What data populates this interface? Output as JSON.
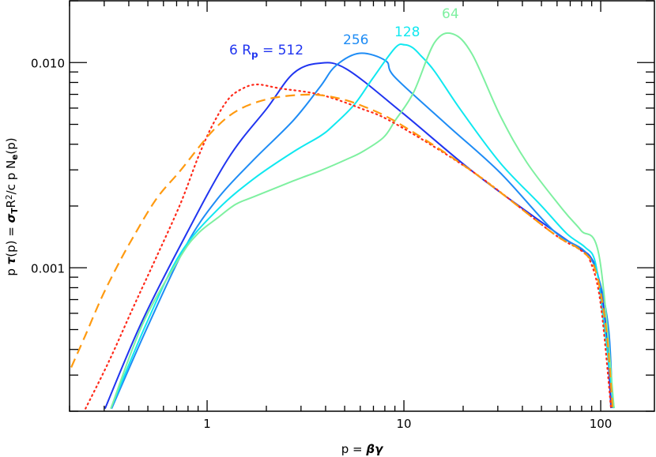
{
  "chart_data": {
    "type": "line",
    "xscale": "log",
    "yscale": "log",
    "xlim": [
      0.2,
      200
    ],
    "ylim": [
      0.0002,
      0.02
    ],
    "grid": false,
    "xlabel": [
      {
        "text": "p = "
      },
      {
        "text": "βγ",
        "bold": true,
        "italic": true
      }
    ],
    "ylabel": [
      {
        "text": "p "
      },
      {
        "text": "τ",
        "bold": true,
        "italic": true
      },
      {
        "text": "(p) = "
      },
      {
        "text": "σ",
        "bold": true,
        "italic": true
      },
      {
        "text": "T",
        "sub": true
      },
      {
        "text": "R"
      },
      {
        "text": "2",
        "sup": true
      },
      {
        "text": "/c p N"
      },
      {
        "text": "e",
        "sub": true
      },
      {
        "text": "(p)"
      }
    ],
    "xticks": [
      {
        "value": 1,
        "label": "1"
      },
      {
        "value": 10,
        "label": "10"
      },
      {
        "value": 100,
        "label": "100"
      }
    ],
    "yticks": [
      {
        "value": 0.001,
        "label": "0.001"
      },
      {
        "value": 0.01,
        "label": "0.010"
      }
    ],
    "series": [
      {
        "name": "512",
        "color": "#2035f0",
        "style": "solid",
        "x": [
          0.303,
          0.46,
          0.73,
          1.27,
          2.02,
          2.74,
          3.68,
          5.09,
          9.7,
          22.8,
          57.4,
          78,
          88.7,
          97.3,
          106.7,
          112.8
        ],
        "y": [
          0.000206,
          0.000531,
          0.00128,
          0.00337,
          0.00601,
          0.00885,
          0.00991,
          0.00932,
          0.00575,
          0.0029,
          0.00152,
          0.00124,
          0.00113,
          0.0009,
          0.000499,
          0.000207
        ]
      },
      {
        "name": "256",
        "color": "#1e8cf5",
        "style": "solid",
        "x": [
          0.327,
          0.505,
          0.78,
          1.13,
          1.73,
          2.74,
          3.75,
          4.51,
          5.96,
          8.08,
          9.03,
          16.8,
          30.9,
          57.4,
          83.2,
          97.3,
          109.7,
          114.9
        ],
        "y": [
          0.000206,
          0.000531,
          0.00128,
          0.00217,
          0.00337,
          0.00522,
          0.00762,
          0.00966,
          0.0111,
          0.0102,
          0.00846,
          0.00491,
          0.0029,
          0.00152,
          0.0012,
          0.0009,
          0.000499,
          0.000207
        ]
      },
      {
        "name": "128",
        "color": "#10e8f0",
        "style": "solid",
        "x": [
          0.324,
          0.49,
          0.73,
          1.13,
          1.73,
          2.74,
          3.75,
          4.35,
          5.58,
          6.91,
          9.03,
          10.1,
          11.1,
          12.2,
          14.3,
          19.5,
          30.9,
          49.1,
          67.1,
          83.2,
          93.7,
          102.8,
          116.9
        ],
        "y": [
          0.000206,
          0.000531,
          0.00117,
          0.00192,
          0.00272,
          0.00367,
          0.00438,
          0.00491,
          0.00622,
          0.00832,
          0.0118,
          0.0122,
          0.0118,
          0.0108,
          0.00908,
          0.00585,
          0.00324,
          0.00204,
          0.00147,
          0.00126,
          0.00107,
          0.00058,
          0.000207
        ]
      },
      {
        "name": "64",
        "color": "#7ef0a0",
        "style": "solid",
        "x": [
          0.324,
          0.47,
          0.73,
          0.9,
          1.13,
          1.4,
          1.73,
          2.74,
          3.75,
          5.09,
          6.13,
          7.86,
          9.03,
          11.2,
          14.3,
          17.7,
          22.2,
          30.9,
          42.3,
          64.8,
          79.4,
          98.2,
          116.9
        ],
        "y": [
          0.000206,
          0.000531,
          0.00113,
          0.00147,
          0.00175,
          0.00204,
          0.00222,
          0.00265,
          0.00297,
          0.00337,
          0.00367,
          0.00431,
          0.00522,
          0.00716,
          0.0125,
          0.0138,
          0.011,
          0.0055,
          0.00324,
          0.0019,
          0.00152,
          0.00114,
          0.000207
        ]
      },
      {
        "color": "#ff2a1a",
        "style": "dotted",
        "x": [
          0.241,
          0.318,
          0.419,
          0.553,
          0.73,
          0.9,
          1.06,
          1.27,
          1.49,
          1.79,
          2.36,
          3.75,
          5.96,
          9.03,
          22.8,
          57.4,
          78,
          88.7,
          100,
          112.8
        ],
        "y": [
          0.000206,
          0.000352,
          0.000634,
          0.00113,
          0.00204,
          0.00345,
          0.00491,
          0.00656,
          0.00741,
          0.00782,
          0.00748,
          0.00698,
          0.00601,
          0.00504,
          0.0029,
          0.00147,
          0.00123,
          0.00107,
          0.000667,
          0.000207
        ]
      },
      {
        "color": "#ff9a10",
        "style": "dashed",
        "x": [
          0.204,
          0.241,
          0.29,
          0.348,
          0.419,
          0.553,
          0.73,
          1.06,
          1.43,
          2.08,
          3.21,
          4.35,
          5.96,
          9.46,
          22.8,
          57.4,
          78,
          93.7,
          106.7,
          114.9
        ],
        "y": [
          0.000327,
          0.00047,
          0.00071,
          0.00101,
          0.0014,
          0.00217,
          0.00297,
          0.00461,
          0.00585,
          0.00667,
          0.00698,
          0.00679,
          0.00622,
          0.00504,
          0.0029,
          0.00147,
          0.00123,
          0.000982,
          0.000499,
          0.000207
        ]
      }
    ],
    "annotations": [
      {
        "series": "512",
        "parts": [
          {
            "text": "6 R"
          },
          {
            "text": "p",
            "sub": true
          },
          {
            "text": " = 512"
          }
        ],
        "color": "#2035f0"
      },
      {
        "series": "256",
        "parts": [
          {
            "text": "256"
          }
        ],
        "color": "#1e8cf5"
      },
      {
        "series": "128",
        "parts": [
          {
            "text": "128"
          }
        ],
        "color": "#10e8f0"
      },
      {
        "series": "64",
        "parts": [
          {
            "text": "64"
          }
        ],
        "color": "#7ef0a0"
      }
    ]
  }
}
